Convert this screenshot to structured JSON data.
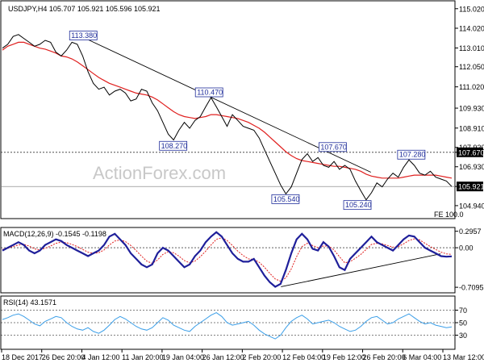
{
  "chart_data": {
    "type": "line",
    "price_pane": {
      "title": "USDJPY,H4  105.707 105.921 105.596 105.921",
      "y_ticks": [
        "104.940",
        "105.921",
        "106.930",
        "107.670",
        "107.920",
        "108.910",
        "109.930",
        "111.020",
        "112.050",
        "113.010",
        "114.020",
        "115.020"
      ],
      "current_price": "105.921",
      "resistance_level": "107.670",
      "fe_label": "FE 100.0",
      "labels": [
        {
          "text": "113.380"
        },
        {
          "text": "110.470"
        },
        {
          "text": "108.270"
        },
        {
          "text": "107.670"
        },
        {
          "text": "105.540"
        },
        {
          "text": "105.240"
        },
        {
          "text": "107.280"
        }
      ],
      "price_series": [
        113.0,
        113.2,
        113.6,
        113.7,
        113.5,
        113.3,
        113.1,
        113.2,
        113.4,
        113.3,
        112.8,
        112.6,
        112.9,
        113.3,
        113.2,
        112.6,
        111.8,
        111.2,
        110.9,
        111.0,
        110.6,
        110.8,
        110.9,
        110.7,
        110.3,
        110.4,
        110.9,
        110.8,
        110.2,
        109.8,
        109.2,
        108.6,
        108.3,
        108.8,
        109.2,
        108.9,
        109.3,
        109.5,
        110.0,
        110.47,
        110.0,
        109.5,
        109.0,
        109.6,
        109.3,
        109.0,
        108.9,
        108.8,
        108.4,
        107.8,
        107.2,
        106.6,
        106.0,
        105.54,
        105.9,
        106.6,
        107.3,
        107.6,
        107.2,
        107.4,
        107.0,
        106.9,
        107.2,
        106.8,
        107.0,
        106.8,
        106.2,
        105.7,
        105.24,
        105.6,
        106.1,
        105.9,
        106.3,
        106.6,
        106.4,
        106.9,
        107.28,
        107.0,
        106.6,
        106.5,
        106.7,
        106.4,
        106.3,
        106.2,
        105.921
      ],
      "ma_series": [
        112.9,
        113.1,
        113.2,
        113.3,
        113.3,
        113.2,
        113.1,
        113.0,
        112.95,
        112.85,
        112.75,
        112.6,
        112.55,
        112.45,
        112.3,
        112.1,
        111.9,
        111.7,
        111.5,
        111.35,
        111.2,
        111.1,
        111.0,
        110.9,
        110.8,
        110.7,
        110.65,
        110.6,
        110.5,
        110.35,
        110.15,
        109.95,
        109.75,
        109.6,
        109.5,
        109.45,
        109.4,
        109.45,
        109.5,
        109.6,
        109.6,
        109.55,
        109.5,
        109.45,
        109.4,
        109.3,
        109.2,
        109.05,
        108.9,
        108.7,
        108.45,
        108.2,
        107.95,
        107.7,
        107.5,
        107.35,
        107.25,
        107.2,
        107.15,
        107.1,
        107.05,
        107.0,
        106.95,
        106.95,
        106.9,
        106.85,
        106.8,
        106.7,
        106.55,
        106.45,
        106.4,
        106.35,
        106.35,
        106.35,
        106.35,
        106.4,
        106.45,
        106.5,
        106.5,
        106.5,
        106.5,
        106.5,
        106.45,
        106.4,
        106.35
      ],
      "trendline": [
        [
          113.55,
          0.18
        ],
        [
          106.65,
          0.82
        ]
      ]
    },
    "macd_pane": {
      "title": "MACD(12,26,9) -0.1545 -0.1198",
      "y_ticks": [
        "0.2957",
        "0.00",
        "-0.7095"
      ],
      "ylim": [
        -0.78,
        0.32
      ],
      "macd_series": [
        -0.05,
        0.0,
        0.05,
        0.1,
        0.05,
        -0.05,
        -0.1,
        -0.05,
        0.05,
        0.1,
        0.15,
        0.12,
        0.05,
        0.0,
        -0.05,
        -0.1,
        -0.15,
        -0.1,
        -0.05,
        0.05,
        0.2,
        0.25,
        0.15,
        0.05,
        -0.1,
        -0.2,
        -0.3,
        -0.35,
        -0.3,
        -0.1,
        0.0,
        -0.05,
        -0.15,
        -0.25,
        -0.35,
        -0.3,
        -0.15,
        -0.05,
        0.1,
        0.2,
        0.28,
        0.2,
        0.05,
        -0.1,
        -0.2,
        -0.25,
        -0.25,
        -0.2,
        -0.35,
        -0.5,
        -0.62,
        -0.7,
        -0.65,
        -0.4,
        -0.1,
        0.15,
        0.25,
        0.15,
        -0.02,
        -0.05,
        0.1,
        0.02,
        -0.15,
        -0.35,
        -0.4,
        -0.2,
        -0.1,
        0.0,
        0.1,
        0.2,
        0.1,
        0.05,
        0.0,
        -0.05,
        0.05,
        0.15,
        0.22,
        0.2,
        0.1,
        0.0,
        -0.05,
        -0.1,
        -0.15,
        -0.16,
        -0.1545
      ],
      "signal_series": [
        -0.03,
        -0.01,
        0.02,
        0.05,
        0.06,
        0.03,
        -0.02,
        -0.04,
        -0.01,
        0.03,
        0.08,
        0.1,
        0.09,
        0.06,
        0.02,
        -0.03,
        -0.08,
        -0.1,
        -0.09,
        -0.04,
        0.05,
        0.12,
        0.14,
        0.11,
        0.04,
        -0.05,
        -0.15,
        -0.24,
        -0.28,
        -0.22,
        -0.12,
        -0.07,
        -0.09,
        -0.15,
        -0.23,
        -0.27,
        -0.24,
        -0.16,
        -0.06,
        0.05,
        0.15,
        0.18,
        0.13,
        0.04,
        -0.06,
        -0.14,
        -0.2,
        -0.21,
        -0.26,
        -0.35,
        -0.46,
        -0.56,
        -0.6,
        -0.54,
        -0.38,
        -0.16,
        0.02,
        0.08,
        0.04,
        0.0,
        0.03,
        0.03,
        -0.04,
        -0.16,
        -0.27,
        -0.25,
        -0.19,
        -0.12,
        -0.03,
        0.06,
        0.08,
        0.07,
        0.04,
        0.01,
        0.02,
        0.07,
        0.13,
        0.16,
        0.14,
        0.08,
        0.02,
        -0.03,
        -0.08,
        -0.11,
        -0.1198
      ],
      "trendline": [
        [
          -0.7,
          0.62
        ],
        [
          -0.11,
          0.975
        ]
      ]
    },
    "rsi_pane": {
      "title": "RSI(14) 43.1571",
      "y_ticks": [
        "70",
        "50",
        "30"
      ],
      "ylim": [
        10,
        90
      ],
      "rsi_series": [
        55,
        58,
        62,
        64,
        60,
        54,
        48,
        45,
        52,
        56,
        60,
        58,
        50,
        44,
        40,
        38,
        42,
        36,
        33,
        38,
        46,
        55,
        60,
        56,
        50,
        44,
        40,
        38,
        42,
        50,
        58,
        54,
        46,
        42,
        38,
        36,
        44,
        50,
        56,
        62,
        66,
        60,
        50,
        46,
        48,
        50,
        52,
        46,
        38,
        32,
        28,
        24,
        30,
        42,
        52,
        58,
        62,
        56,
        48,
        50,
        52,
        54,
        50,
        44,
        40,
        36,
        38,
        44,
        52,
        58,
        60,
        54,
        48,
        50,
        56,
        60,
        64,
        58,
        52,
        48,
        50,
        46,
        44,
        42,
        43.1571
      ]
    },
    "x_ticks": [
      "18 Dec 2017",
      "26 Dec 20:00",
      "4 Jan 12:00",
      "11 Jan 20:00",
      "19 Jan 04:00",
      "26 Jan 12:00",
      "2 Feb 20:00",
      "12 Feb 04:00",
      "19 Feb 12:00",
      "26 Feb 20:00",
      "6 Mar 04:00",
      "13 Mar 12:00"
    ],
    "colors": {
      "price": "#000000",
      "ma": "#e0201f",
      "trendline": "#000000",
      "macd": "#1f1f9a",
      "signal": "#e0201f",
      "rsi": "#3a9ee8",
      "label_border": "#1f2d9a",
      "hline": "#000000"
    }
  },
  "watermark": "ActionForex.com"
}
